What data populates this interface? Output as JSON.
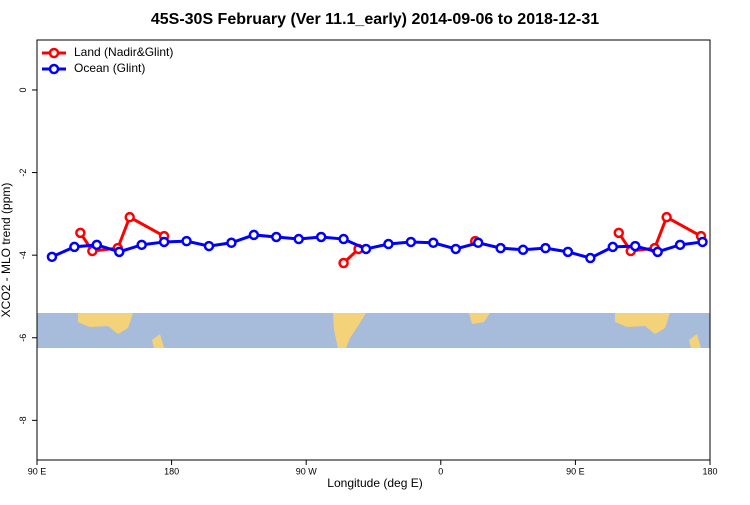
{
  "chart_data": {
    "type": "line",
    "title": "45S-30S February (Ver 11.1_early)   2014-09-06 to 2018-12-31",
    "x_label": "Longitude (deg E)",
    "y_label": "XCO2 - MLO trend (ppm)",
    "xlim": [
      90,
      540
    ],
    "ylim": [
      -8.96,
      1.21
    ],
    "xticks": [
      {
        "value": 90,
        "label": "90 E"
      },
      180,
      {
        "value": 270,
        "label": "90 W"
      },
      {
        "value": 360,
        "label": "0"
      },
      {
        "value": 450,
        "label": "90 E"
      },
      {
        "value": 540,
        "label": "180"
      }
    ],
    "yticks": [
      0,
      -2,
      -4,
      -6,
      -8
    ],
    "legend": "top-left",
    "series": [
      {
        "name": "Land (Nadir&Glint)",
        "color": "#ff0000",
        "x": [
          119,
          127,
          144,
          152,
          175,
          null,
          295,
          305,
          null,
          383,
          null,
          479,
          487,
          503,
          511,
          534
        ],
        "values": [
          -3.46,
          -3.9,
          -3.83,
          -3.08,
          -3.54,
          null,
          -4.19,
          -3.85,
          null,
          -3.66,
          null,
          -3.46,
          -3.9,
          -3.83,
          -3.08,
          -3.54
        ]
      },
      {
        "name": "Ocean (Glint)",
        "color": "#0000ff",
        "x": [
          100,
          115,
          130,
          145,
          160,
          175,
          190,
          205,
          220,
          235,
          250,
          265,
          280,
          295,
          310,
          325,
          340,
          355,
          370,
          385,
          400,
          415,
          430,
          445,
          460,
          475,
          490,
          505,
          520,
          535
        ],
        "values": [
          -4.04,
          -3.8,
          -3.75,
          -3.92,
          -3.75,
          -3.68,
          -3.66,
          -3.78,
          -3.7,
          -3.51,
          -3.56,
          -3.61,
          -3.56,
          -3.61,
          -3.85,
          -3.73,
          -3.68,
          -3.7,
          -3.85,
          -3.7,
          -3.83,
          -3.87,
          -3.83,
          -3.92,
          -4.07,
          -3.8,
          -3.78,
          -3.92,
          -3.75,
          -3.68
        ]
      }
    ]
  }
}
